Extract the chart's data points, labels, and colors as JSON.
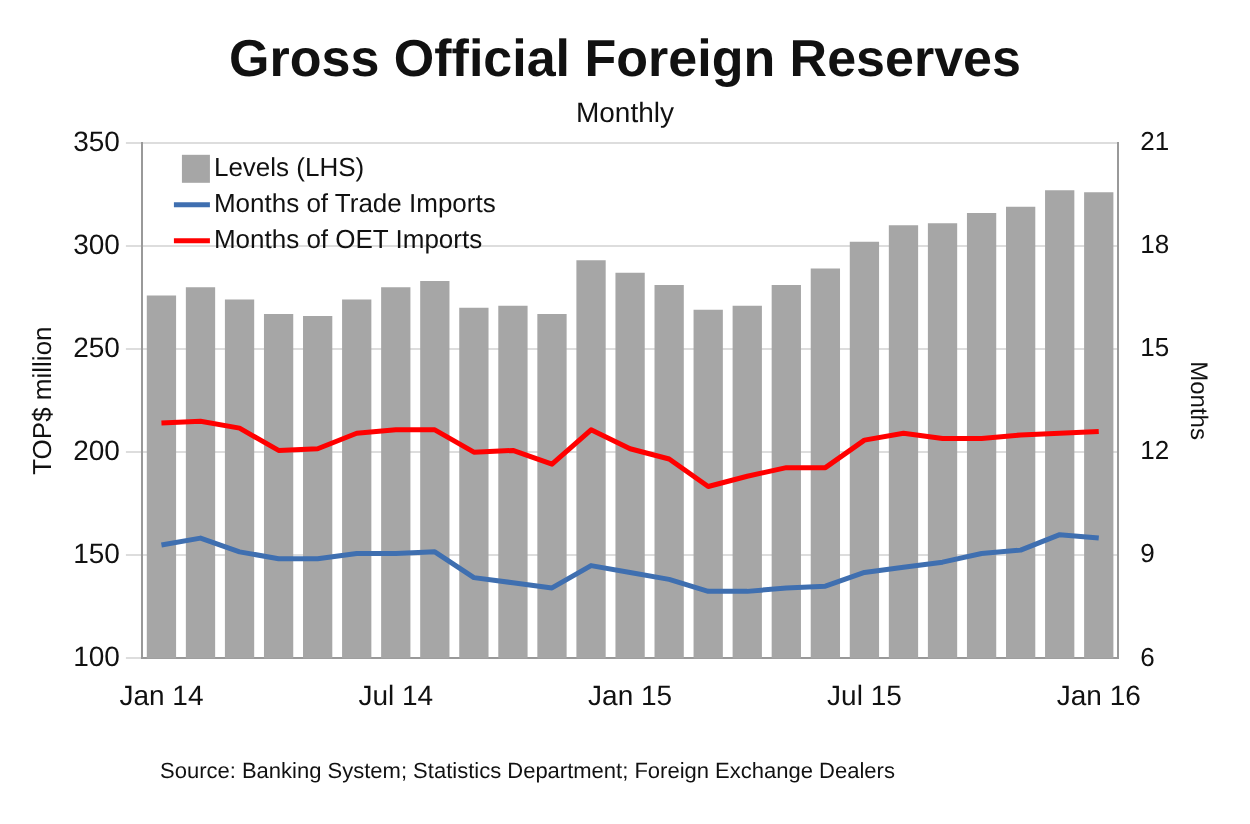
{
  "chart_data": {
    "type": "bar",
    "title": "Gross Official Foreign Reserves",
    "subtitle": "Monthly",
    "ylabel": "TOP$ million",
    "y2label": "Months",
    "categories": [
      "Jan 14",
      null,
      null,
      null,
      null,
      null,
      "Jul 14",
      null,
      null,
      null,
      null,
      null,
      "Jan 15",
      null,
      null,
      null,
      null,
      null,
      "Jul 15",
      null,
      null,
      null,
      null,
      null,
      "Jan 16"
    ],
    "series": [
      {
        "name": "Levels (LHS)",
        "color": "#a6a6a6",
        "values": [
          276,
          280,
          274,
          267,
          266,
          274,
          280,
          283,
          270,
          271,
          267,
          293,
          287,
          281,
          269,
          271,
          281,
          289,
          302,
          310,
          311,
          316,
          319,
          327,
          326
        ]
      },
      {
        "name": "Months of Trade Imports",
        "type": "line",
        "axis": "y2",
        "color": "#3f6fb0",
        "values": [
          9.3,
          9.5,
          9.1,
          8.9,
          8.9,
          9.05,
          9.05,
          9.1,
          8.35,
          8.2,
          8.05,
          8.7,
          8.5,
          8.3,
          7.95,
          7.95,
          8.05,
          8.1,
          8.5,
          8.65,
          8.8,
          9.05,
          9.15,
          9.6,
          9.5
        ]
      },
      {
        "name": "Months of OET Imports",
        "type": "line",
        "axis": "y2",
        "color": "#ff0000",
        "values": [
          12.85,
          12.9,
          12.7,
          12.05,
          12.1,
          12.55,
          12.65,
          12.65,
          12.0,
          12.05,
          11.65,
          12.65,
          12.1,
          11.8,
          11.0,
          11.3,
          11.55,
          11.55,
          12.35,
          12.55,
          12.4,
          12.4,
          12.5,
          12.55,
          12.6
        ]
      }
    ],
    "ylim": [
      100,
      350
    ],
    "yticks": [
      100,
      150,
      200,
      250,
      300,
      350
    ],
    "y2lim": [
      6,
      21
    ],
    "y2ticks": [
      6,
      9,
      12,
      15,
      18,
      21
    ],
    "grid": "y",
    "legend": "top left",
    "marker": "none",
    "annotations": [
      "Source: Banking System; Statistics Department; Foreign Exchange Dealers"
    ]
  }
}
